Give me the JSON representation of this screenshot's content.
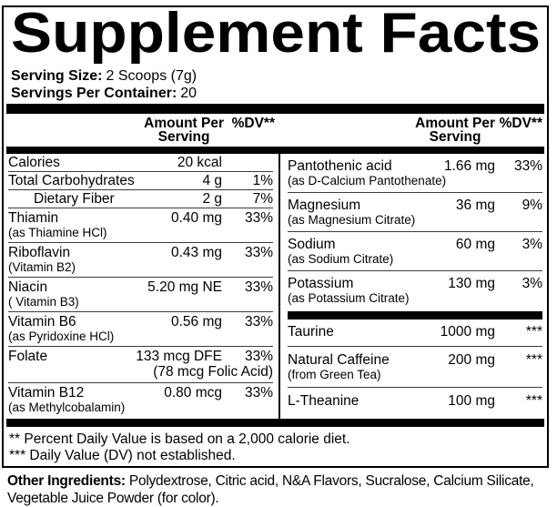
{
  "title": "Supplement Facts",
  "serving": {
    "size_label": "Serving Size:",
    "size_value": "2 Scoops (7g)",
    "container_label": "Servings Per Container:",
    "container_value": "20"
  },
  "headers": {
    "amount_line1": "Amount Per",
    "amount_line2": "Serving",
    "dv": "%DV**"
  },
  "left_rows": [
    {
      "name": "Calories",
      "sub": "",
      "amount": "20 kcal",
      "dv": ""
    },
    {
      "name": "Total Carbohydrates",
      "sub": "",
      "amount": "4 g",
      "dv": "1%"
    },
    {
      "name": "Dietary Fiber",
      "sub": "",
      "amount": "2 g",
      "dv": "7%"
    },
    {
      "name": "Thiamin",
      "sub": "(as Thiamine HCl)",
      "amount": "0.40 mg",
      "dv": "33%"
    },
    {
      "name": "Riboflavin",
      "sub": "(Vitamin B2)",
      "amount": "0.43 mg",
      "dv": "33%"
    },
    {
      "name": "Niacin",
      "sub": "( Vitamin B3)",
      "amount": "5.20 mg NE",
      "dv": "33%"
    },
    {
      "name": "Vitamin B6",
      "sub": "(as Pyridoxine HCl)",
      "amount": "0.56 mg",
      "dv": "33%"
    },
    {
      "name": "Folate",
      "sub": "",
      "amount": "133 mcg DFE",
      "amount2": "(78 mcg Folic Acid)",
      "dv": "33%"
    },
    {
      "name": "Vitamin B12",
      "sub": "(as Methylcobalamin)",
      "amount": "0.80 mcg",
      "dv": "33%"
    }
  ],
  "right_rows_top": [
    {
      "name": "Pantothenic acid",
      "sub": "(as D-Calcium Pantothenate)",
      "amount": "1.66 mg",
      "dv": "33%"
    },
    {
      "name": "Magnesium",
      "sub": "(as Magnesium Citrate)",
      "amount": "36 mg",
      "dv": "9%"
    },
    {
      "name": "Sodium",
      "sub": "(as Sodium Citrate)",
      "amount": "60 mg",
      "dv": "3%"
    },
    {
      "name": "Potassium",
      "sub": "(as Potassium Citrate)",
      "amount": "130 mg",
      "dv": "3%"
    }
  ],
  "right_rows_bottom": [
    {
      "name": "Taurine",
      "sub": "",
      "amount": "1000 mg",
      "dv": "***"
    },
    {
      "name": "Natural Caffeine",
      "sub": "(from Green Tea)",
      "amount": "200 mg",
      "dv": "***"
    },
    {
      "name": "L-Theanine",
      "sub": "",
      "amount": "100 mg",
      "dv": "***"
    }
  ],
  "footnotes": {
    "line1": "** Percent Daily Value is based on a 2,000 calorie diet.",
    "line2": "*** Daily Value (DV) not established."
  },
  "other": {
    "label": "Other Ingredients:",
    "line1": "Polydextrose, Citric acid, N&A Flavors, Sucralose, Calcium Silicate,",
    "line2": "Vegetable Juice Powder (for color)."
  },
  "colors": {
    "text": "#000000",
    "background": "#ffffff",
    "rule": "#000000"
  }
}
